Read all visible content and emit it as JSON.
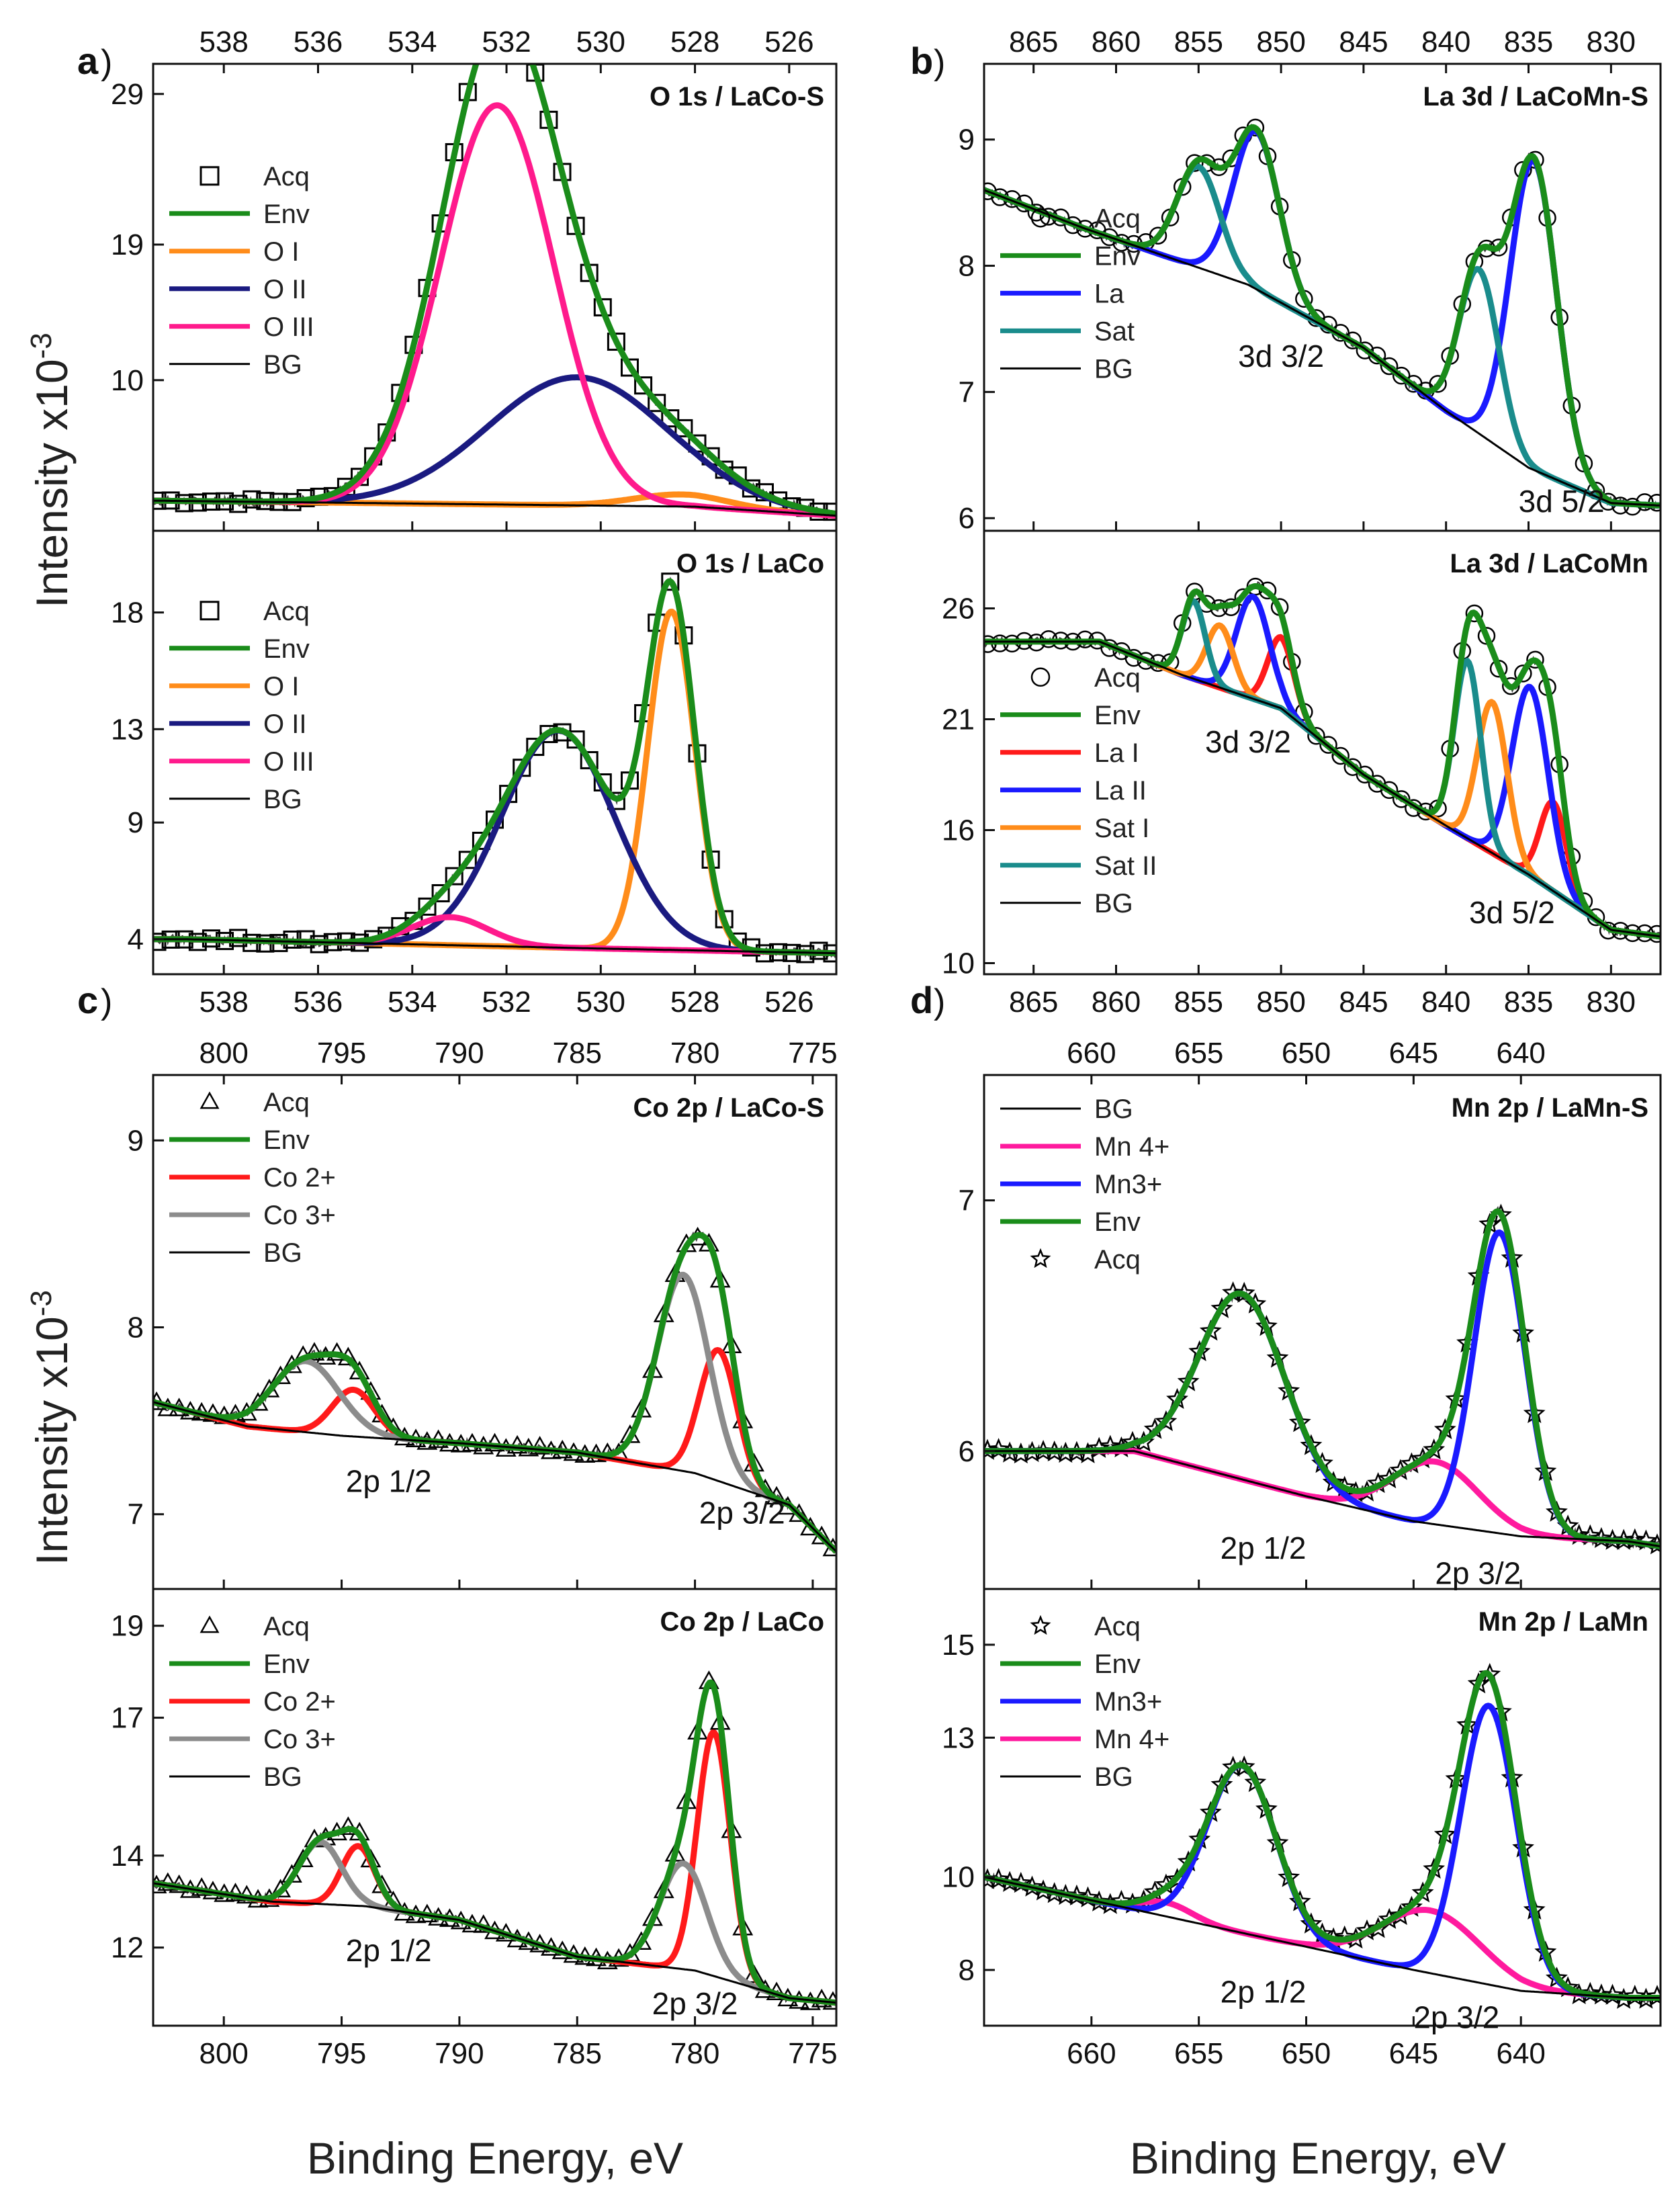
{
  "figure": {
    "xlabel": "Binding Energy, eV",
    "ylabel_parts": [
      "Intensity x10",
      "-3"
    ]
  },
  "chart_data": [
    {
      "type": "line",
      "id": "a",
      "letter": "a",
      "group": "a",
      "title": "O 1s / LaCo-S",
      "xlim": [
        539.5,
        525
      ],
      "ylim": [
        0,
        31
      ],
      "yticks": [
        29,
        19,
        10
      ],
      "xticks": [
        538,
        536,
        534,
        532,
        530,
        528,
        526
      ],
      "legend": [
        "Acq",
        "Env",
        "O I",
        "O II",
        "O III",
        "BG"
      ],
      "legend_position": "middle-left",
      "bg": [
        [
          539.5,
          2.0
        ],
        [
          528,
          1.6
        ],
        [
          525,
          1.0
        ]
      ],
      "series": [
        {
          "name": "O I",
          "color": "#ff8c1a",
          "peaks": [
            [
              528.3,
              0.8,
              1.0
            ]
          ]
        },
        {
          "name": "O II",
          "color": "#1a1a80",
          "peaks": [
            [
              530.5,
              8.5,
              1.9
            ]
          ]
        },
        {
          "name": "O III",
          "color": "#ff1a8c",
          "peaks": [
            [
              532.2,
              26.5,
              1.2
            ]
          ]
        }
      ],
      "acq_marker": "square",
      "annotations": []
    },
    {
      "type": "line",
      "id": "a2",
      "letter": "",
      "group": "a",
      "title": "O 1s / LaCo",
      "xlim": [
        539.5,
        525
      ],
      "ylim": [
        2.5,
        21.5
      ],
      "yticks": [
        18,
        13,
        9,
        4
      ],
      "xticks": [
        538,
        536,
        534,
        532,
        530,
        528,
        526
      ],
      "legend": [
        "Acq",
        "Env",
        "O I",
        "O II",
        "O III",
        "BG"
      ],
      "legend_position": "middle-left",
      "bg": [
        [
          538.8,
          4.0
        ],
        [
          530,
          3.6
        ],
        [
          525,
          3.4
        ]
      ],
      "series": [
        {
          "name": "O I",
          "color": "#ff8c1a",
          "peaks": [
            [
              528.5,
              14.5,
              0.5
            ]
          ]
        },
        {
          "name": "O II",
          "color": "#1a1a80",
          "peaks": [
            [
              530.9,
              9.3,
              1.2
            ]
          ]
        },
        {
          "name": "O III",
          "color": "#ff1a8c",
          "peaks": [
            [
              533.2,
              1.2,
              0.8
            ]
          ]
        }
      ],
      "acq_marker": "square",
      "annotations": []
    },
    {
      "type": "line",
      "id": "b",
      "letter": "b",
      "group": "b",
      "title": "La 3d / LaCoMn-S",
      "xlim": [
        868,
        827
      ],
      "ylim": [
        5.9,
        9.6
      ],
      "yticks": [
        9,
        8,
        7,
        6
      ],
      "xticks": [
        865,
        860,
        855,
        850,
        845,
        840,
        835,
        830
      ],
      "legend": [
        "Acq",
        "Env",
        "La",
        "Sat",
        "BG"
      ],
      "legend_position": "lower-left",
      "bg": [
        [
          868,
          8.6
        ],
        [
          862,
          8.3
        ],
        [
          852,
          7.85
        ],
        [
          845,
          7.35
        ],
        [
          840,
          6.85
        ],
        [
          835,
          6.4
        ],
        [
          830,
          6.12
        ],
        [
          827,
          6.1
        ]
      ],
      "series": [
        {
          "name": "La",
          "color": "#1a1aff",
          "peaks": [
            [
              851.5,
              1.25,
              1.4
            ],
            [
              834.7,
              2.45,
              1.4
            ]
          ]
        },
        {
          "name": "Sat",
          "color": "#1a8c8c",
          "peaks": [
            [
              855.0,
              0.8,
              1.3
            ],
            [
              838.0,
              1.3,
              1.2
            ]
          ]
        }
      ],
      "acq_marker": "circle",
      "annotations": [
        {
          "text": "3d 3/2",
          "x": 850,
          "y": 7.2
        },
        {
          "text": "3d 5/2",
          "x": 833,
          "y": 6.05
        }
      ]
    },
    {
      "type": "line",
      "id": "b2",
      "letter": "",
      "group": "b",
      "title": "La 3d / LaCoMn",
      "xlim": [
        868,
        827
      ],
      "ylim": [
        9.5,
        29.5
      ],
      "yticks": [
        26,
        21,
        16,
        10
      ],
      "xticks": [
        865,
        860,
        855,
        850,
        845,
        840,
        835,
        830
      ],
      "legend": [
        "Acq",
        "Env",
        "La I",
        "La II",
        "Sat I",
        "Sat II",
        "BG"
      ],
      "legend_position": "lower-left",
      "bg": [
        [
          861,
          24.5
        ],
        [
          856,
          23.0
        ],
        [
          850,
          21.5
        ],
        [
          845,
          18.5
        ],
        [
          840,
          16.2
        ],
        [
          835,
          14.0
        ],
        [
          830,
          11.5
        ],
        [
          827,
          11.2
        ]
      ],
      "series": [
        {
          "name": "La I",
          "color": "#ff1a1a",
          "peaks": [
            [
              850.0,
              3.2,
              0.8
            ],
            [
              833.5,
              4.0,
              0.8
            ]
          ]
        },
        {
          "name": "La II",
          "color": "#1a1aff",
          "peaks": [
            [
              851.7,
              4.6,
              1.0
            ],
            [
              834.9,
              8.5,
              1.1
            ]
          ]
        },
        {
          "name": "Sat I",
          "color": "#ff8c1a",
          "peaks": [
            [
              853.7,
              2.8,
              0.8
            ],
            [
              837.2,
              6.8,
              0.9
            ]
          ]
        },
        {
          "name": "Sat II",
          "color": "#1a8c8c",
          "peaks": [
            [
              855.3,
              3.5,
              0.7
            ],
            [
              838.7,
              8.0,
              0.8
            ]
          ]
        }
      ],
      "acq_marker": "circle",
      "annotations": [
        {
          "text": "3d 3/2",
          "x": 852,
          "y": 19.5
        },
        {
          "text": "3d 5/2",
          "x": 836,
          "y": 11.8
        }
      ]
    },
    {
      "type": "line",
      "id": "c",
      "letter": "c",
      "group": "c",
      "title": "Co 2p / LaCo-S",
      "xlim": [
        803,
        774
      ],
      "ylim": [
        6.6,
        9.35
      ],
      "yticks": [
        9,
        8,
        7
      ],
      "xticks": [
        800,
        795,
        790,
        785,
        780,
        775
      ],
      "legend": [
        "Acq",
        "Env",
        "Co 2+",
        "Co 3+",
        "BG"
      ],
      "legend_position": "top-left",
      "bg": [
        [
          803,
          7.6
        ],
        [
          799,
          7.47
        ],
        [
          795,
          7.42
        ],
        [
          790,
          7.38
        ],
        [
          785,
          7.33
        ],
        [
          780,
          7.22
        ],
        [
          776,
          7.05
        ],
        [
          774,
          6.8
        ]
      ],
      "series": [
        {
          "name": "Co 2+",
          "color": "#ff1a1a",
          "peaks": [
            [
              794.5,
              0.25,
              0.9
            ],
            [
              779.0,
              0.7,
              0.8
            ]
          ]
        },
        {
          "name": "Co 3+",
          "color": "#8c8c8c",
          "peaks": [
            [
              796.5,
              0.38,
              1.4
            ],
            [
              780.5,
              1.05,
              1.1
            ]
          ]
        }
      ],
      "acq_marker": "triangle",
      "annotations": [
        {
          "text": "2p 1/2",
          "x": 793,
          "y": 7.12
        },
        {
          "text": "2p 3/2",
          "x": 778,
          "y": 6.95
        }
      ]
    },
    {
      "type": "line",
      "id": "c2",
      "letter": "",
      "group": "c",
      "title": "Co 2p / LaCo",
      "xlim": [
        803,
        774
      ],
      "ylim": [
        10.3,
        19.8
      ],
      "yticks": [
        19,
        17,
        14,
        12
      ],
      "xticks": [
        800,
        795,
        790,
        785,
        780,
        775
      ],
      "legend": [
        "Acq",
        "Env",
        "Co 2+",
        "Co 3+",
        "BG"
      ],
      "legend_position": "top-left",
      "bg": [
        [
          803,
          13.4
        ],
        [
          798,
          13.0
        ],
        [
          794,
          12.9
        ],
        [
          790,
          12.6
        ],
        [
          785,
          11.8
        ],
        [
          780,
          11.5
        ],
        [
          776,
          10.9
        ],
        [
          774,
          10.8
        ]
      ],
      "series": [
        {
          "name": "Co 2+",
          "color": "#ff1a1a",
          "peaks": [
            [
              794.3,
              1.3,
              0.7
            ],
            [
              779.2,
              5.3,
              0.7
            ]
          ]
        },
        {
          "name": "Co 3+",
          "color": "#8c8c8c",
          "peaks": [
            [
              795.9,
              1.35,
              0.9
            ],
            [
              780.5,
              2.3,
              1.0
            ]
          ]
        }
      ],
      "acq_marker": "triangle",
      "annotations": [
        {
          "text": "2p 1/2",
          "x": 793,
          "y": 11.7
        },
        {
          "text": "2p 3/2",
          "x": 780,
          "y": 10.55
        }
      ]
    },
    {
      "type": "line",
      "id": "d",
      "letter": "d",
      "group": "d",
      "title": "Mn 2p / LaMn-S",
      "xlim": [
        665,
        633.5
      ],
      "ylim": [
        5.45,
        7.5
      ],
      "yticks": [
        7,
        6
      ],
      "xticks": [
        660,
        655,
        650,
        645,
        640
      ],
      "legend": [
        "BG",
        "Mn 4+",
        "Mn3+",
        "Env",
        "Acq"
      ],
      "legend_position": "top-left",
      "bg": [
        [
          658,
          6.0
        ],
        [
          650,
          5.82
        ],
        [
          645,
          5.72
        ],
        [
          640,
          5.66
        ],
        [
          635,
          5.64
        ],
        [
          633.5,
          5.62
        ]
      ],
      "series": [
        {
          "name": "Mn 4+",
          "color": "#ff1a9e",
          "peaks": [
            [
              644.0,
              0.25,
              2.0
            ]
          ]
        },
        {
          "name": "Mn3+",
          "color": "#1a1aff",
          "peaks": [
            [
              653.0,
              0.74,
              2.0
            ],
            [
              641.0,
              1.2,
              1.2
            ]
          ]
        }
      ],
      "acq_marker": "star",
      "annotations": [
        {
          "text": "2p 1/2",
          "x": 652,
          "y": 5.57
        },
        {
          "text": "2p 3/2",
          "x": 642,
          "y": 5.47
        }
      ]
    },
    {
      "type": "line",
      "id": "d2",
      "letter": "",
      "group": "d",
      "title": "Mn 2p / LaMn",
      "xlim": [
        665,
        633.5
      ],
      "ylim": [
        6.8,
        16.2
      ],
      "yticks": [
        15,
        13,
        10,
        8
      ],
      "xticks": [
        660,
        655,
        650,
        645,
        640
      ],
      "legend": [
        "Acq",
        "Env",
        "Mn3+",
        "Mn 4+",
        "BG"
      ],
      "legend_position": "top-left",
      "bg": [
        [
          665,
          10.0
        ],
        [
          658,
          9.3
        ],
        [
          650,
          8.5
        ],
        [
          645,
          8.0
        ],
        [
          640,
          7.55
        ],
        [
          635,
          7.4
        ],
        [
          633.5,
          7.4
        ]
      ],
      "series": [
        {
          "name": "Mn 4+",
          "color": "#ff1a9e",
          "peaks": [
            [
              656.5,
              0.3,
              1.2
            ],
            [
              644.2,
              1.35,
              2.3
            ]
          ]
        },
        {
          "name": "Mn3+",
          "color": "#1a1aff",
          "peaks": [
            [
              653.0,
              3.6,
              1.6
            ],
            [
              641.5,
              6.0,
              1.3
            ]
          ]
        }
      ],
      "acq_marker": "star",
      "annotations": [
        {
          "text": "2p 1/2",
          "x": 652,
          "y": 7.3
        },
        {
          "text": "2p 3/2",
          "x": 643,
          "y": 6.75
        }
      ]
    }
  ],
  "colors": {
    "Env": "#1a8c1a",
    "BG": "#000000",
    "Acq": "#000000"
  }
}
